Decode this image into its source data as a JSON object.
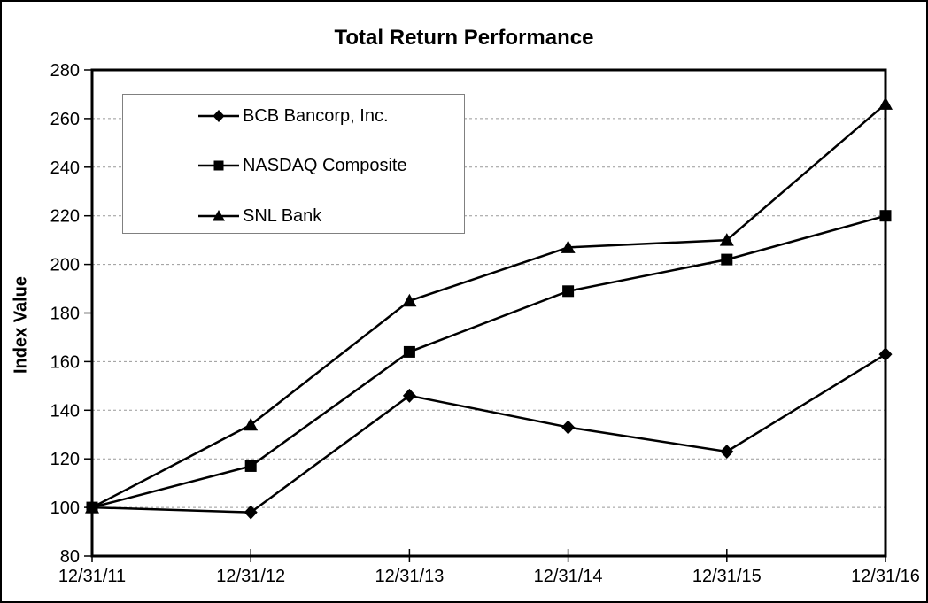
{
  "window": {
    "background_color": "#ffffff",
    "border_color": "#000000"
  },
  "chart_data": {
    "type": "line",
    "title": "Total Return Performance",
    "xlabel": "",
    "ylabel": "Index Value",
    "categories": [
      "12/31/11",
      "12/31/12",
      "12/31/13",
      "12/31/14",
      "12/31/15",
      "12/31/16"
    ],
    "series": [
      {
        "name": "BCB Bancorp, Inc.",
        "marker": "diamond",
        "color": "#000000",
        "values": [
          100,
          98,
          146,
          133,
          123,
          163
        ]
      },
      {
        "name": "NASDAQ Composite",
        "marker": "square",
        "color": "#000000",
        "values": [
          100,
          117,
          164,
          189,
          202,
          220
        ]
      },
      {
        "name": "SNL Bank",
        "marker": "triangle",
        "color": "#000000",
        "values": [
          100,
          134,
          185,
          207,
          210,
          266
        ]
      }
    ],
    "ylim": [
      80,
      280
    ],
    "ytick_step": 20,
    "yticks": [
      80,
      100,
      120,
      140,
      160,
      180,
      200,
      220,
      240,
      260,
      280
    ],
    "grid": "horizontal dashed gridlines from 100 to 260",
    "gridline_color": "#999999",
    "axis_color": "#000000",
    "legend_position": "inside top-left",
    "legend_border_color": "#808080",
    "legend_background": "#ffffff"
  }
}
